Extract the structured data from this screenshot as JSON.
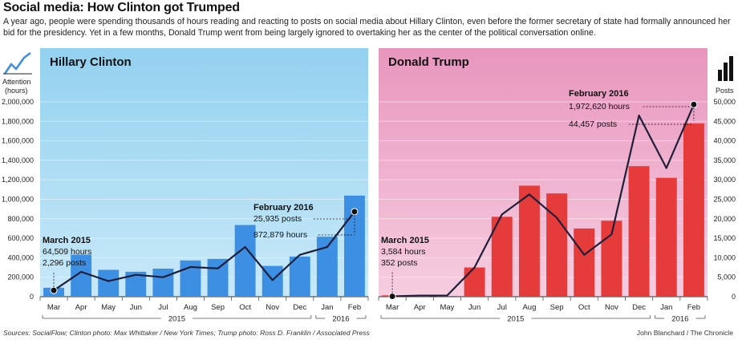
{
  "title": "Social media: How Clinton got Trumped",
  "subtitle": "A year ago, people were spending thousands of hours reading and reacting to posts on social media about Hillary Clinton, even before the former secretary of state had formally announced her bid for the presidency. Yet in a few months, Donald Trump went from being largely ignored to overtaking her as the center of the political conversation online.",
  "footer": {
    "sources": "Sources: SocialFlow; Clinton photo: Max Whittaker / New York Times; Trump photo: Ross D. Franklin / Associated Press",
    "credit": "John Blanchard / The Chronicle"
  },
  "colors": {
    "clinton_bg": "#9ed6f2",
    "clinton_bar": "#3d8fe3",
    "trump_bg": "#eda7c6",
    "trump_bar": "#e63b3b",
    "line": "#1f1f3a"
  },
  "chart_data": [
    {
      "type": "bar",
      "panel": "Hillary Clinton",
      "title": "Hillary Clinton",
      "categories": [
        "Mar",
        "Apr",
        "May",
        "Jun",
        "Jul",
        "Aug",
        "Sep",
        "Oct",
        "Nov",
        "Dec",
        "Jan",
        "Feb"
      ],
      "year_labels": [
        {
          "label": "2015",
          "months": 10
        },
        {
          "label": "2016",
          "months": 2
        }
      ],
      "left_axis": {
        "label": "Attention (hours)",
        "ticks": [
          "0",
          "200,000",
          "400,000",
          "600,000",
          "800,000",
          "1,000,000",
          "1,200,000",
          "1,400,000",
          "1,600,000",
          "1,800,000",
          "2,000,000"
        ],
        "range": [
          0,
          2000000
        ],
        "icon": "line-chart-icon"
      },
      "right_axis": {
        "label": "Posts",
        "range": [
          0,
          50000
        ],
        "icon": "bar-chart-icon"
      },
      "series": [
        {
          "name": "Posts",
          "kind": "bar",
          "axis": "right",
          "values": [
            2296,
            10800,
            6900,
            6400,
            7200,
            9300,
            9700,
            18400,
            7900,
            10300,
            15400,
            25935
          ]
        },
        {
          "name": "Attention (hours)",
          "kind": "line",
          "axis": "left",
          "values": [
            64509,
            255000,
            160000,
            225000,
            200000,
            305000,
            290000,
            510000,
            170000,
            430000,
            510000,
            872879
          ]
        }
      ],
      "annotations": [
        {
          "header": "March 2015",
          "lines": [
            "64,509 hours",
            "2,296 posts"
          ],
          "category": "Mar",
          "value": 64509
        },
        {
          "header": "February 2016",
          "lines": [
            "25,935 posts",
            "872,879 hours"
          ],
          "category": "Feb",
          "value": 872879
        }
      ]
    },
    {
      "type": "bar",
      "panel": "Donald Trump",
      "title": "Donald Trump",
      "categories": [
        "Mar",
        "Apr",
        "May",
        "Jun",
        "Jul",
        "Aug",
        "Sep",
        "Oct",
        "Nov",
        "Dec",
        "Jan",
        "Feb"
      ],
      "year_labels": [
        {
          "label": "2015",
          "months": 10
        },
        {
          "label": "2016",
          "months": 2
        }
      ],
      "left_axis": {
        "label": "Attention (hours)",
        "range": [
          0,
          2000000
        ]
      },
      "right_axis": {
        "label": "Posts",
        "ticks": [
          "0",
          "5,000",
          "10,000",
          "15,000",
          "20,000",
          "25,000",
          "30,000",
          "35,000",
          "40,000",
          "45,000",
          "50,000"
        ],
        "range": [
          0,
          50000
        ],
        "icon": "bar-chart-icon"
      },
      "series": [
        {
          "name": "Posts",
          "kind": "bar",
          "axis": "right",
          "values": [
            352,
            150,
            200,
            7500,
            20500,
            28500,
            26500,
            17500,
            19500,
            33500,
            30500,
            44457
          ]
        },
        {
          "name": "Attention (hours)",
          "kind": "line",
          "axis": "left",
          "values": [
            3584,
            12000,
            12000,
            300000,
            845000,
            1050000,
            810000,
            430000,
            640000,
            1860000,
            1320000,
            1972620
          ]
        }
      ],
      "annotations": [
        {
          "header": "March 2015",
          "lines": [
            "3,584 hours",
            "352 posts"
          ],
          "category": "Mar",
          "value": 3584
        },
        {
          "header": "February 2016",
          "lines": [
            "1,972,620 hours",
            "44,457 posts"
          ],
          "category": "Feb",
          "value": 1972620
        }
      ]
    }
  ]
}
